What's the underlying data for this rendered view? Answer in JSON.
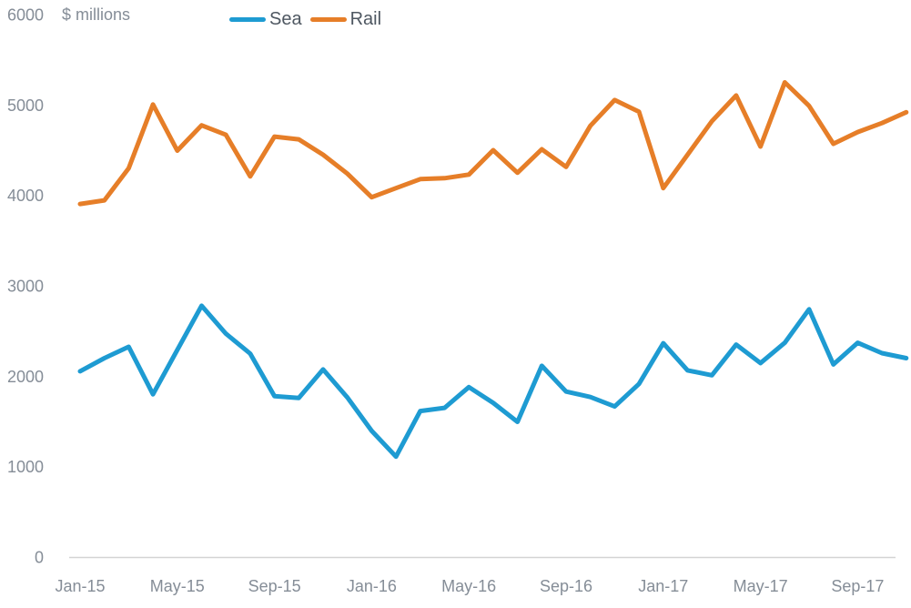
{
  "chart_data": {
    "type": "line",
    "title": "",
    "ylabel": "$ millions",
    "xlabel": "",
    "ylim": [
      0,
      6000
    ],
    "y_tick_step": 1000,
    "grid": false,
    "legend_position": "top",
    "axis_color": "#D4D4D4",
    "tick_color": "#858D97",
    "legend_text_color": "#4E5761",
    "x": [
      "Jan-15",
      "Feb-15",
      "Mar-15",
      "Apr-15",
      "May-15",
      "Jun-15",
      "Jul-15",
      "Aug-15",
      "Sep-15",
      "Oct-15",
      "Nov-15",
      "Dec-15",
      "Jan-16",
      "Feb-16",
      "Mar-16",
      "Apr-16",
      "May-16",
      "Jun-16",
      "Jul-16",
      "Aug-16",
      "Sep-16",
      "Oct-16",
      "Nov-16",
      "Dec-16",
      "Jan-17",
      "Feb-17",
      "Mar-17",
      "Apr-17",
      "May-17",
      "Jun-17",
      "Jul-17",
      "Aug-17",
      "Sep-17",
      "Oct-17",
      "Nov-17"
    ],
    "x_tick_labels": [
      "Jan-15",
      "May-15",
      "Sep-15",
      "Jan-16",
      "May-16",
      "Sep-16",
      "Jan-17",
      "May-17",
      "Sep-17"
    ],
    "x_tick_every": 4,
    "series": [
      {
        "name": "Sea",
        "color": "#1E9BD2",
        "values": [
          2055,
          2200,
          2325,
          1800,
          2290,
          2780,
          2470,
          2250,
          1780,
          1760,
          2075,
          1765,
          1395,
          1110,
          1615,
          1650,
          1880,
          1705,
          1495,
          2115,
          1830,
          1770,
          1665,
          1915,
          2365,
          2065,
          2010,
          2350,
          2145,
          2370,
          2740,
          2130,
          2370,
          2255,
          2200
        ]
      },
      {
        "name": "Rail",
        "color": "#E67E28",
        "values": [
          3905,
          3945,
          4300,
          5005,
          4495,
          4775,
          4670,
          4210,
          4650,
          4620,
          4450,
          4240,
          3980,
          4080,
          4180,
          4190,
          4230,
          4500,
          4250,
          4510,
          4315,
          4770,
          5055,
          4925,
          4080,
          4450,
          4820,
          5105,
          4540,
          5250,
          4990,
          4570,
          4700,
          4800,
          4920
        ]
      }
    ]
  }
}
